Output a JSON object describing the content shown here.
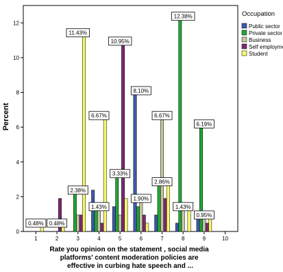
{
  "chart_data": {
    "type": "bar",
    "categories": [
      "1",
      "2",
      "3",
      "4",
      "5",
      "6",
      "7",
      "8",
      "9",
      "10"
    ],
    "ylabel": "Percent",
    "xlabel_lines": [
      "Rate you opinion on the statement , social media",
      "platforms' content moderation policies are",
      "effective in curbing hate speech and ..."
    ],
    "ylim": [
      0,
      13
    ],
    "yticks": [
      "0",
      "2",
      "4",
      "6",
      "8",
      "10",
      "12"
    ],
    "grid": false,
    "legend_title": "Occupation",
    "legend_position": "top-right",
    "series": [
      {
        "name": "Public sector",
        "color": "#3e58ac",
        "values": [
          0,
          0,
          0,
          2.38,
          1.43,
          8.1,
          0.95,
          0.48,
          0.95,
          0
        ]
      },
      {
        "name": "Private sector",
        "color": "#21a535",
        "values": [
          0,
          0,
          2.38,
          1.43,
          3.33,
          1.43,
          2.86,
          12.38,
          6.19,
          0
        ]
      },
      {
        "name": "Business",
        "color": "#c6c6a1",
        "values": [
          0,
          0,
          0.95,
          1.43,
          0.95,
          1.9,
          6.67,
          1.43,
          0.95,
          0
        ]
      },
      {
        "name": "Self employment",
        "color": "#7a2a72",
        "values": [
          0,
          1.9,
          0.95,
          0.48,
          10.95,
          0.95,
          1.9,
          0,
          0.48,
          0
        ]
      },
      {
        "name": "Student",
        "color": "#f7f76e",
        "values": [
          0.48,
          0.48,
          11.43,
          6.67,
          1.9,
          0.48,
          2.86,
          1.43,
          0.95,
          0
        ]
      }
    ],
    "data_labels": [
      {
        "text": "0.48%",
        "x": "1",
        "y": 0.48
      },
      {
        "text": "0.48%",
        "x": "2",
        "y": 0.48
      },
      {
        "text": "2.38%",
        "x": "3",
        "y": 2.38
      },
      {
        "text": "11.43%",
        "x": "3",
        "y": 11.43
      },
      {
        "text": "6.67%",
        "x": "4",
        "y": 6.67
      },
      {
        "text": "1.43%",
        "x": "4",
        "y": 1.43
      },
      {
        "text": "3.33%",
        "x": "5",
        "y": 3.33
      },
      {
        "text": "10.95%",
        "x": "5",
        "y": 10.95
      },
      {
        "text": "8.10%",
        "x": "6",
        "y": 8.1
      },
      {
        "text": "1.90%",
        "x": "6",
        "y": 1.9
      },
      {
        "text": "6.67%",
        "x": "7",
        "y": 6.67
      },
      {
        "text": "2.86%",
        "x": "7",
        "y": 2.86
      },
      {
        "text": "12.38%",
        "x": "8",
        "y": 12.38
      },
      {
        "text": "1.43%",
        "x": "8",
        "y": 1.43
      },
      {
        "text": "6.19%",
        "x": "9",
        "y": 6.19
      },
      {
        "text": "0.95%",
        "x": "9",
        "y": 0.95
      }
    ]
  }
}
